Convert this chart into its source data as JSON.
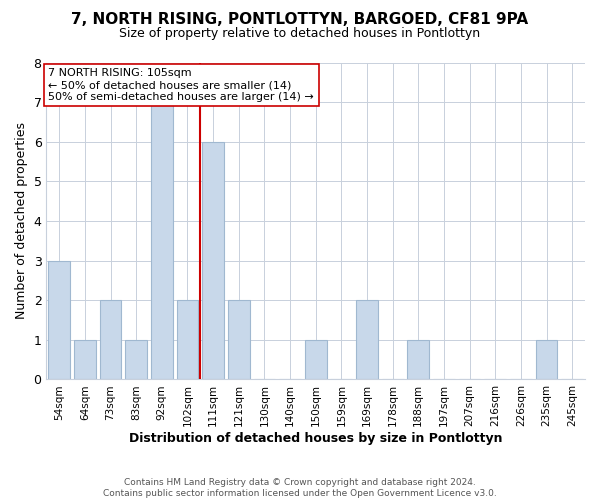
{
  "title": "7, NORTH RISING, PONTLOTTYN, BARGOED, CF81 9PA",
  "subtitle": "Size of property relative to detached houses in Pontlottyn",
  "xlabel": "Distribution of detached houses by size in Pontlottyn",
  "ylabel": "Number of detached properties",
  "bin_labels": [
    "54sqm",
    "64sqm",
    "73sqm",
    "83sqm",
    "92sqm",
    "102sqm",
    "111sqm",
    "121sqm",
    "130sqm",
    "140sqm",
    "150sqm",
    "159sqm",
    "169sqm",
    "178sqm",
    "188sqm",
    "197sqm",
    "207sqm",
    "216sqm",
    "226sqm",
    "235sqm",
    "245sqm"
  ],
  "bin_centers": [
    0,
    1,
    2,
    3,
    4,
    5,
    6,
    7,
    8,
    9,
    10,
    11,
    12,
    13,
    14,
    15,
    16,
    17,
    18,
    19,
    20
  ],
  "counts": [
    3,
    1,
    2,
    1,
    7,
    2,
    6,
    2,
    0,
    0,
    1,
    0,
    2,
    0,
    1,
    0,
    0,
    0,
    0,
    1,
    0
  ],
  "bar_color": "#c8d8ea",
  "bar_edge_color": "#a0b8d0",
  "property_line_bin": 5.5,
  "property_line_color": "#cc0000",
  "annotation_line1": "7 NORTH RISING: 105sqm",
  "annotation_line2": "← 50% of detached houses are smaller (14)",
  "annotation_line3": "50% of semi-detached houses are larger (14) →",
  "annotation_box_color": "#ffffff",
  "annotation_box_edge_color": "#cc0000",
  "ylim": [
    0,
    8
  ],
  "yticks": [
    0,
    1,
    2,
    3,
    4,
    5,
    6,
    7,
    8
  ],
  "footer_text": "Contains HM Land Registry data © Crown copyright and database right 2024.\nContains public sector information licensed under the Open Government Licence v3.0.",
  "background_color": "#ffffff",
  "grid_color": "#c8d0dc"
}
